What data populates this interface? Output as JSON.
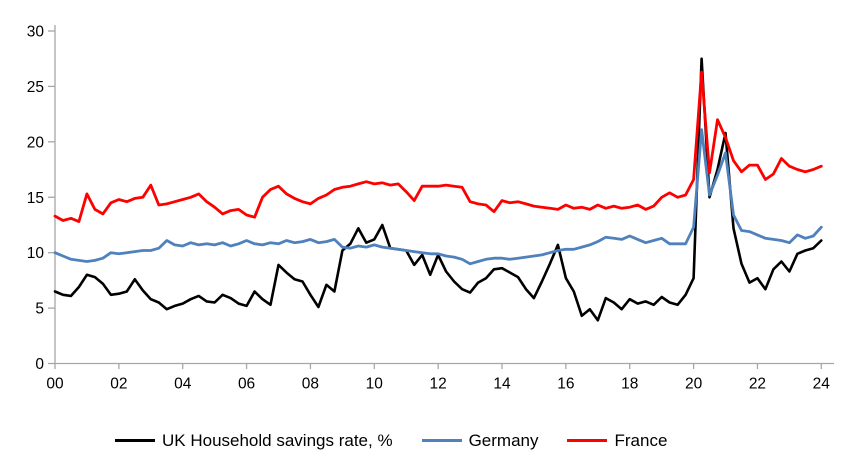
{
  "chart_data": {
    "type": "line",
    "title": "",
    "grid": false,
    "legend_position": "bottom",
    "axis_color": "#a6a6a6",
    "text_color": "#000000",
    "x_axis": {
      "tick_labels": [
        "00",
        "02",
        "04",
        "06",
        "08",
        "10",
        "12",
        "14",
        "16",
        "18",
        "20",
        "22",
        "24"
      ],
      "start": "2000 Q1",
      "end": "2024 Q1",
      "frequency": "quarterly",
      "points_per_tick": 8
    },
    "y_axis": {
      "ticks": [
        0,
        5,
        10,
        15,
        20,
        25,
        30
      ],
      "range": [
        0,
        30
      ]
    },
    "series": [
      {
        "name": "UK Household savings rate, %",
        "color": "#000000",
        "stroke_width": 2.6,
        "values": [
          6.5,
          6.2,
          6.1,
          6.9,
          8.0,
          7.8,
          7.2,
          6.2,
          6.3,
          6.5,
          7.6,
          6.6,
          5.8,
          5.5,
          4.9,
          5.2,
          5.4,
          5.8,
          6.1,
          5.6,
          5.5,
          6.2,
          5.9,
          5.4,
          5.2,
          6.5,
          5.8,
          5.3,
          8.9,
          8.2,
          7.6,
          7.4,
          6.2,
          5.1,
          7.1,
          6.5,
          10.2,
          10.8,
          12.2,
          10.9,
          11.2,
          12.5,
          10.4,
          10.3,
          10.2,
          8.9,
          9.8,
          8.0,
          9.8,
          8.3,
          7.4,
          6.7,
          6.4,
          7.3,
          7.7,
          8.5,
          8.6,
          8.2,
          7.8,
          6.7,
          5.9,
          7.4,
          9.0,
          10.7,
          7.7,
          6.5,
          4.3,
          4.9,
          3.9,
          5.9,
          5.5,
          4.9,
          5.8,
          5.4,
          5.6,
          5.3,
          6.0,
          5.5,
          5.3,
          6.2,
          7.7,
          27.5,
          15.0,
          17.5,
          20.8,
          12.2,
          9.0,
          7.3,
          7.7,
          6.7,
          8.5,
          9.2,
          8.3,
          9.9,
          10.2,
          10.4,
          11.1
        ]
      },
      {
        "name": "Germany",
        "color": "#4f81bd",
        "stroke_width": 2.8,
        "values": [
          10.0,
          9.7,
          9.4,
          9.3,
          9.2,
          9.3,
          9.5,
          10.0,
          9.9,
          10.0,
          10.1,
          10.2,
          10.2,
          10.4,
          11.1,
          10.7,
          10.6,
          10.9,
          10.7,
          10.8,
          10.7,
          10.9,
          10.6,
          10.8,
          11.1,
          10.8,
          10.7,
          10.9,
          10.8,
          11.1,
          10.9,
          11.0,
          11.2,
          10.9,
          11.0,
          11.2,
          10.5,
          10.4,
          10.6,
          10.5,
          10.7,
          10.5,
          10.4,
          10.3,
          10.2,
          10.1,
          10.0,
          9.9,
          9.9,
          9.7,
          9.6,
          9.4,
          9.0,
          9.2,
          9.4,
          9.5,
          9.5,
          9.4,
          9.5,
          9.6,
          9.7,
          9.8,
          10.0,
          10.2,
          10.3,
          10.3,
          10.5,
          10.7,
          11.0,
          11.4,
          11.3,
          11.2,
          11.5,
          11.2,
          10.9,
          11.1,
          11.3,
          10.8,
          10.8,
          10.8,
          12.3,
          21.1,
          15.2,
          17.0,
          19.0,
          13.4,
          12.0,
          11.9,
          11.6,
          11.3,
          11.2,
          11.1,
          10.9,
          11.6,
          11.3,
          11.5,
          12.3
        ]
      },
      {
        "name": "France",
        "color": "#ff0000",
        "stroke_width": 2.8,
        "values": [
          13.3,
          12.9,
          13.1,
          12.8,
          15.3,
          13.9,
          13.5,
          14.5,
          14.8,
          14.6,
          14.9,
          15.0,
          16.1,
          14.3,
          14.4,
          14.6,
          14.8,
          15.0,
          15.3,
          14.6,
          14.1,
          13.5,
          13.8,
          13.9,
          13.4,
          13.2,
          15.0,
          15.7,
          16.0,
          15.3,
          14.9,
          14.6,
          14.4,
          14.9,
          15.2,
          15.7,
          15.9,
          16.0,
          16.2,
          16.4,
          16.2,
          16.3,
          16.1,
          16.2,
          15.5,
          14.7,
          16.0,
          16.0,
          16.0,
          16.1,
          16.0,
          15.9,
          14.6,
          14.4,
          14.3,
          13.7,
          14.7,
          14.5,
          14.6,
          14.4,
          14.2,
          14.1,
          14.0,
          13.9,
          14.3,
          14.0,
          14.1,
          13.9,
          14.3,
          14.0,
          14.2,
          14.0,
          14.1,
          14.3,
          13.9,
          14.2,
          15.0,
          15.4,
          15.0,
          15.2,
          16.6,
          26.3,
          17.2,
          22.0,
          20.4,
          18.3,
          17.3,
          17.9,
          17.9,
          16.6,
          17.1,
          18.5,
          17.8,
          17.5,
          17.3,
          17.5,
          17.8
        ]
      }
    ]
  }
}
